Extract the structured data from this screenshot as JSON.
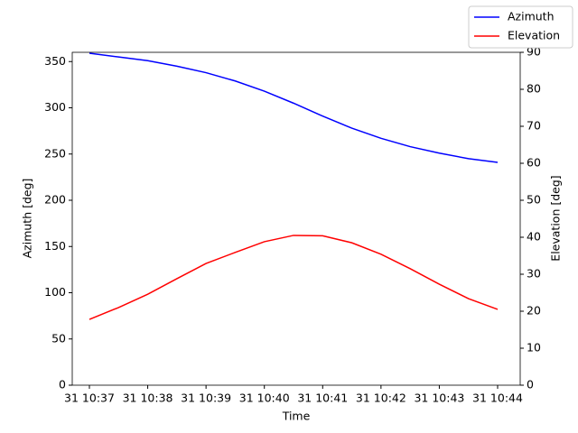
{
  "chart_data": {
    "type": "line",
    "x_label": "Time",
    "y_label": "Azimuth [deg]",
    "y2_label": "Elevation [deg]",
    "x": [
      37,
      37.5,
      38,
      38.5,
      39,
      39.5,
      40,
      40.5,
      41,
      41.5,
      42,
      42.5,
      43,
      43.5,
      44
    ],
    "xlim": [
      36.706,
      44.387
    ],
    "xticks": [
      {
        "value": 37,
        "label": "31 10:37"
      },
      {
        "value": 38,
        "label": "31 10:38"
      },
      {
        "value": 39,
        "label": "31 10:39"
      },
      {
        "value": 40,
        "label": "31 10:40"
      },
      {
        "value": 41,
        "label": "31 10:41"
      },
      {
        "value": 42,
        "label": "31 10:42"
      },
      {
        "value": 43,
        "label": "31 10:43"
      },
      {
        "value": 44,
        "label": "31 10:44"
      }
    ],
    "ylim": [
      0,
      360
    ],
    "yticks": [
      0,
      50,
      100,
      150,
      200,
      250,
      300,
      350
    ],
    "y2lim": [
      0,
      90
    ],
    "y2ticks": [
      0,
      10,
      20,
      30,
      40,
      50,
      60,
      70,
      80,
      90
    ],
    "legend": "upper right",
    "series": [
      {
        "name": "Azimuth",
        "color": "#0000ff",
        "values": [
          359,
          355,
          351,
          345,
          338,
          329,
          318,
          305,
          291,
          278,
          267,
          258,
          251,
          245,
          241
        ]
      },
      {
        "name": "Elevation",
        "color": "#ff0000",
        "axis": "y2",
        "values": [
          17.8,
          21,
          24.6,
          28.8,
          32.9,
          35.9,
          38.8,
          40.5,
          40.4,
          38.5,
          35.4,
          31.5,
          27.3,
          23.4,
          20.5
        ]
      }
    ]
  }
}
